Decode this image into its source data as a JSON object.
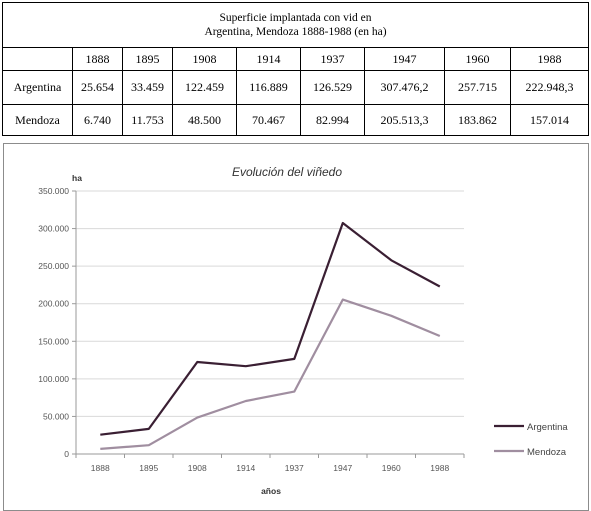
{
  "table": {
    "caption_line1": "Superficie implantada con vid en",
    "caption_line2": "Argentina, Mendoza 1888-1988 (en ha)",
    "years": [
      "1888",
      "1895",
      "1908",
      "1914",
      "1937",
      "1947",
      "1960",
      "1988"
    ],
    "rows": [
      {
        "name": "Argentina",
        "cells": [
          "25.654",
          "33.459",
          "122.459",
          "116.889",
          "126.529",
          "307.476,2",
          "257.715",
          "222.948,3"
        ]
      },
      {
        "name": "Mendoza",
        "cells": [
          "6.740",
          "11.753",
          "48.500",
          "70.467",
          "82.994",
          "205.513,3",
          "183.862",
          "157.014"
        ]
      }
    ]
  },
  "chart_data": {
    "type": "line",
    "title": "Evolución del viñedo",
    "xlabel": "años",
    "ylabel": "ha",
    "categories": [
      "1888",
      "1895",
      "1908",
      "1914",
      "1937",
      "1947",
      "1960",
      "1988"
    ],
    "ylim": [
      0,
      350000
    ],
    "yticks": [
      0,
      50000,
      100000,
      150000,
      200000,
      250000,
      300000,
      350000
    ],
    "ytick_labels": [
      "0",
      "50.000",
      "100.000",
      "150.000",
      "200.000",
      "250.000",
      "300.000",
      "350.000"
    ],
    "grid": true,
    "legend_position": "right",
    "series": [
      {
        "name": "Argentina",
        "color": "#3a1f33",
        "values": [
          25654,
          33459,
          122459,
          116889,
          126529,
          307476.2,
          257715,
          222948.3
        ]
      },
      {
        "name": "Mendoza",
        "color": "#a08ea0",
        "values": [
          6740,
          11753,
          48500,
          70467,
          82994,
          205513.3,
          183862,
          157014
        ]
      }
    ]
  }
}
